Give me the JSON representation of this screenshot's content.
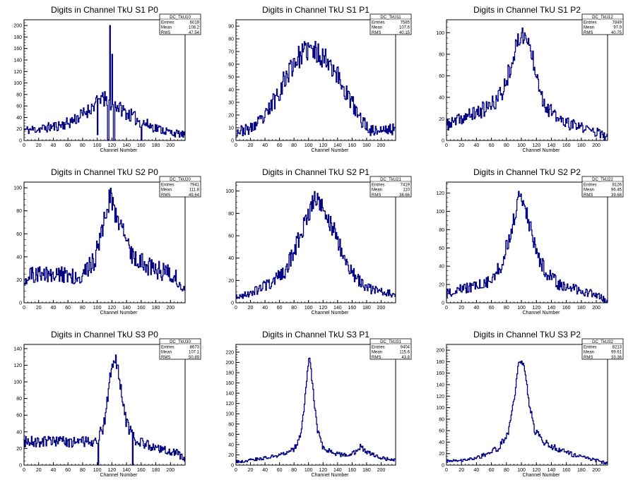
{
  "page": {
    "background": "#ffffff",
    "line_color": "#000080"
  },
  "chart_data": [
    {
      "type": "histogram",
      "title": "Digits in Channel TkU S1 P0",
      "xlabel": "Channel Number",
      "xlim": [
        0,
        220
      ],
      "ylim": [
        0,
        210
      ],
      "xticks": [
        "0",
        "20",
        "40",
        "60",
        "80",
        "100",
        "120",
        "140",
        "160",
        "180",
        "200"
      ],
      "yticks": [
        "0",
        "20",
        "40",
        "60",
        "80",
        "100",
        "120",
        "140",
        "160",
        "180",
        "200"
      ],
      "stats": {
        "name": "DC_TkU10",
        "entries": "6019",
        "mean": "108.2",
        "rms": "47.54"
      },
      "profile": [
        [
          0,
          18
        ],
        [
          20,
          20
        ],
        [
          40,
          24
        ],
        [
          60,
          30
        ],
        [
          80,
          45
        ],
        [
          95,
          60
        ],
        [
          105,
          75
        ],
        [
          112,
          65
        ],
        [
          125,
          62
        ],
        [
          140,
          48
        ],
        [
          160,
          32
        ],
        [
          180,
          22
        ],
        [
          200,
          14
        ],
        [
          218,
          10
        ]
      ],
      "spikes": [
        [
          117,
          200
        ],
        [
          120,
          150
        ],
        [
          110,
          85
        ],
        [
          114,
          0
        ],
        [
          115,
          0
        ],
        [
          122,
          0
        ],
        [
          123,
          0
        ],
        [
          160,
          0
        ],
        [
          100,
          10
        ]
      ],
      "noise": 12,
      "seed": 11
    },
    {
      "type": "histogram",
      "title": "Digits in Channel TkU S1 P1",
      "xlabel": "Channel Number",
      "xlim": [
        0,
        220
      ],
      "ylim": [
        0,
        95
      ],
      "xticks": [
        "0",
        "20",
        "40",
        "60",
        "80",
        "100",
        "120",
        "140",
        "160",
        "180",
        "200"
      ],
      "yticks": [
        "0",
        "10",
        "20",
        "30",
        "40",
        "50",
        "60",
        "70",
        "80",
        "90"
      ],
      "stats": {
        "name": "DC_TkU11",
        "entries": "7585",
        "mean": "107.6",
        "rms": "40.15"
      },
      "profile": [
        [
          0,
          7
        ],
        [
          20,
          9
        ],
        [
          40,
          18
        ],
        [
          60,
          40
        ],
        [
          80,
          62
        ],
        [
          100,
          72
        ],
        [
          115,
          68
        ],
        [
          130,
          62
        ],
        [
          150,
          40
        ],
        [
          170,
          18
        ],
        [
          185,
          8
        ],
        [
          200,
          8
        ],
        [
          218,
          9
        ]
      ],
      "spikes": [],
      "noise": 9,
      "seed": 23
    },
    {
      "type": "histogram",
      "title": "Digits in Channel TkU S1 P2",
      "xlabel": "Channel Number",
      "xlim": [
        0,
        215
      ],
      "ylim": [
        0,
        112
      ],
      "xticks": [
        "0",
        "20",
        "40",
        "60",
        "80",
        "100",
        "120",
        "140",
        "160",
        "180",
        "200"
      ],
      "yticks": [
        "0",
        "20",
        "40",
        "60",
        "80",
        "100"
      ],
      "stats": {
        "name": "DC_TkU12",
        "entries": "7849",
        "mean": "97.9",
        "rms": "40.75"
      },
      "profile": [
        [
          0,
          14
        ],
        [
          20,
          20
        ],
        [
          40,
          26
        ],
        [
          60,
          32
        ],
        [
          75,
          45
        ],
        [
          90,
          80
        ],
        [
          100,
          100
        ],
        [
          110,
          90
        ],
        [
          120,
          65
        ],
        [
          130,
          35
        ],
        [
          145,
          22
        ],
        [
          160,
          16
        ],
        [
          180,
          12
        ],
        [
          200,
          8
        ],
        [
          213,
          3
        ]
      ],
      "spikes": [],
      "noise": 9,
      "seed": 37
    },
    {
      "type": "histogram",
      "title": "Digits in Channel TkU S2 P0",
      "xlabel": "Channel Number",
      "xlim": [
        0,
        220
      ],
      "ylim": [
        0,
        105
      ],
      "xticks": [
        "0",
        "20",
        "40",
        "60",
        "80",
        "100",
        "120",
        "140",
        "160",
        "180",
        "200"
      ],
      "yticks": [
        "0",
        "20",
        "40",
        "60",
        "80",
        "100"
      ],
      "stats": {
        "name": "DC_TkU20",
        "entries": "7941",
        "mean": "111.8",
        "rms": "49.64"
      },
      "profile": [
        [
          0,
          22
        ],
        [
          20,
          25
        ],
        [
          40,
          24
        ],
        [
          60,
          24
        ],
        [
          80,
          24
        ],
        [
          95,
          35
        ],
        [
          105,
          60
        ],
        [
          118,
          92
        ],
        [
          130,
          70
        ],
        [
          145,
          45
        ],
        [
          165,
          33
        ],
        [
          185,
          28
        ],
        [
          205,
          24
        ],
        [
          218,
          12
        ]
      ],
      "spikes": [],
      "noise": 10,
      "seed": 51
    },
    {
      "type": "histogram",
      "title": "Digits in Channel TkU S2 P1",
      "xlabel": "Channel Number",
      "xlim": [
        0,
        220
      ],
      "ylim": [
        0,
        108
      ],
      "xticks": [
        "0",
        "20",
        "40",
        "60",
        "80",
        "100",
        "120",
        "140",
        "160",
        "180",
        "200"
      ],
      "yticks": [
        "0",
        "20",
        "40",
        "60",
        "80",
        "100"
      ],
      "stats": {
        "name": "DC_TkU21",
        "entries": "7419",
        "mean": "110",
        "rms": "38.66"
      },
      "profile": [
        [
          0,
          4
        ],
        [
          15,
          8
        ],
        [
          30,
          12
        ],
        [
          50,
          18
        ],
        [
          70,
          30
        ],
        [
          85,
          55
        ],
        [
          100,
          80
        ],
        [
          110,
          95
        ],
        [
          120,
          85
        ],
        [
          135,
          65
        ],
        [
          150,
          40
        ],
        [
          165,
          22
        ],
        [
          185,
          12
        ],
        [
          205,
          9
        ],
        [
          218,
          8
        ]
      ],
      "spikes": [],
      "noise": 8,
      "seed": 67
    },
    {
      "type": "histogram",
      "title": "Digits in Channel TkU S2 P2",
      "xlabel": "Channel Number",
      "xlim": [
        0,
        215
      ],
      "ylim": [
        0,
        132
      ],
      "xticks": [
        "0",
        "20",
        "40",
        "60",
        "80",
        "100",
        "120",
        "140",
        "160",
        "180",
        "200"
      ],
      "yticks": [
        "0",
        "20",
        "40",
        "60",
        "80",
        "100",
        "120"
      ],
      "stats": {
        "name": "DC_TkU22",
        "entries": "8126",
        "mean": "96.45",
        "rms": "39.68"
      },
      "profile": [
        [
          0,
          10
        ],
        [
          20,
          15
        ],
        [
          40,
          18
        ],
        [
          60,
          25
        ],
        [
          75,
          45
        ],
        [
          88,
          85
        ],
        [
          98,
          118
        ],
        [
          108,
          95
        ],
        [
          120,
          55
        ],
        [
          135,
          32
        ],
        [
          150,
          20
        ],
        [
          170,
          15
        ],
        [
          190,
          11
        ],
        [
          213,
          3
        ]
      ],
      "spikes": [],
      "noise": 9,
      "seed": 79
    },
    {
      "type": "histogram",
      "title": "Digits in Channel TkU S3 P0",
      "xlabel": "Channel Number",
      "xlim": [
        0,
        220
      ],
      "ylim": [
        0,
        145
      ],
      "xticks": [
        "0",
        "20",
        "40",
        "60",
        "80",
        "100",
        "120",
        "140",
        "160",
        "180",
        "200"
      ],
      "yticks": [
        "0",
        "20",
        "40",
        "60",
        "80",
        "100",
        "120",
        "140"
      ],
      "stats": {
        "name": "DC_TkU30",
        "entries": "8673",
        "mean": "107.1",
        "rms": "50.89"
      },
      "profile": [
        [
          0,
          28
        ],
        [
          20,
          28
        ],
        [
          40,
          28
        ],
        [
          60,
          28
        ],
        [
          80,
          28
        ],
        [
          100,
          30
        ],
        [
          110,
          50
        ],
        [
          118,
          110
        ],
        [
          125,
          130
        ],
        [
          132,
          95
        ],
        [
          140,
          50
        ],
        [
          150,
          32
        ],
        [
          170,
          24
        ],
        [
          190,
          18
        ],
        [
          210,
          14
        ],
        [
          218,
          8
        ]
      ],
      "spikes": [
        [
          101,
          0
        ],
        [
          148,
          0
        ]
      ],
      "noise": 8,
      "seed": 91
    },
    {
      "type": "histogram",
      "title": "Digits in Channel TkU S3 P1",
      "xlabel": "Channel Number",
      "xlim": [
        0,
        220
      ],
      "ylim": [
        0,
        235
      ],
      "xticks": [
        "0",
        "20",
        "40",
        "60",
        "80",
        "100",
        "120",
        "140",
        "160",
        "180",
        "200"
      ],
      "yticks": [
        "0",
        "20",
        "40",
        "60",
        "80",
        "100",
        "120",
        "140",
        "160",
        "180",
        "200",
        "220"
      ],
      "stats": {
        "name": "DC_TkU31",
        "entries": "9404",
        "mean": "115.6",
        "rms": "43.8"
      },
      "profile": [
        [
          0,
          6
        ],
        [
          20,
          10
        ],
        [
          40,
          14
        ],
        [
          60,
          20
        ],
        [
          80,
          30
        ],
        [
          90,
          60
        ],
        [
          96,
          140
        ],
        [
          101,
          215
        ],
        [
          106,
          150
        ],
        [
          112,
          70
        ],
        [
          120,
          35
        ],
        [
          135,
          22
        ],
        [
          150,
          20
        ],
        [
          165,
          25
        ],
        [
          172,
          38
        ],
        [
          180,
          25
        ],
        [
          200,
          14
        ],
        [
          218,
          10
        ]
      ],
      "spikes": [],
      "noise": 6,
      "seed": 103
    },
    {
      "type": "histogram",
      "title": "Digits in Channel TkU S3 P2",
      "xlabel": "Channel Number",
      "xlim": [
        0,
        215
      ],
      "ylim": [
        0,
        210
      ],
      "xticks": [
        "0",
        "20",
        "40",
        "60",
        "80",
        "100",
        "120",
        "140",
        "160",
        "180",
        "200"
      ],
      "yticks": [
        "0",
        "20",
        "40",
        "60",
        "80",
        "100",
        "120",
        "140",
        "160",
        "180",
        "200"
      ],
      "stats": {
        "name": "DC_TkU32",
        "entries": "8213",
        "mean": "99.61",
        "rms": "33.36"
      },
      "profile": [
        [
          0,
          6
        ],
        [
          20,
          8
        ],
        [
          40,
          12
        ],
        [
          55,
          20
        ],
        [
          70,
          30
        ],
        [
          82,
          55
        ],
        [
          90,
          110
        ],
        [
          97,
          185
        ],
        [
          104,
          170
        ],
        [
          110,
          110
        ],
        [
          118,
          60
        ],
        [
          130,
          40
        ],
        [
          145,
          30
        ],
        [
          160,
          22
        ],
        [
          180,
          14
        ],
        [
          200,
          8
        ],
        [
          213,
          3
        ]
      ],
      "spikes": [],
      "noise": 6,
      "seed": 127
    }
  ]
}
